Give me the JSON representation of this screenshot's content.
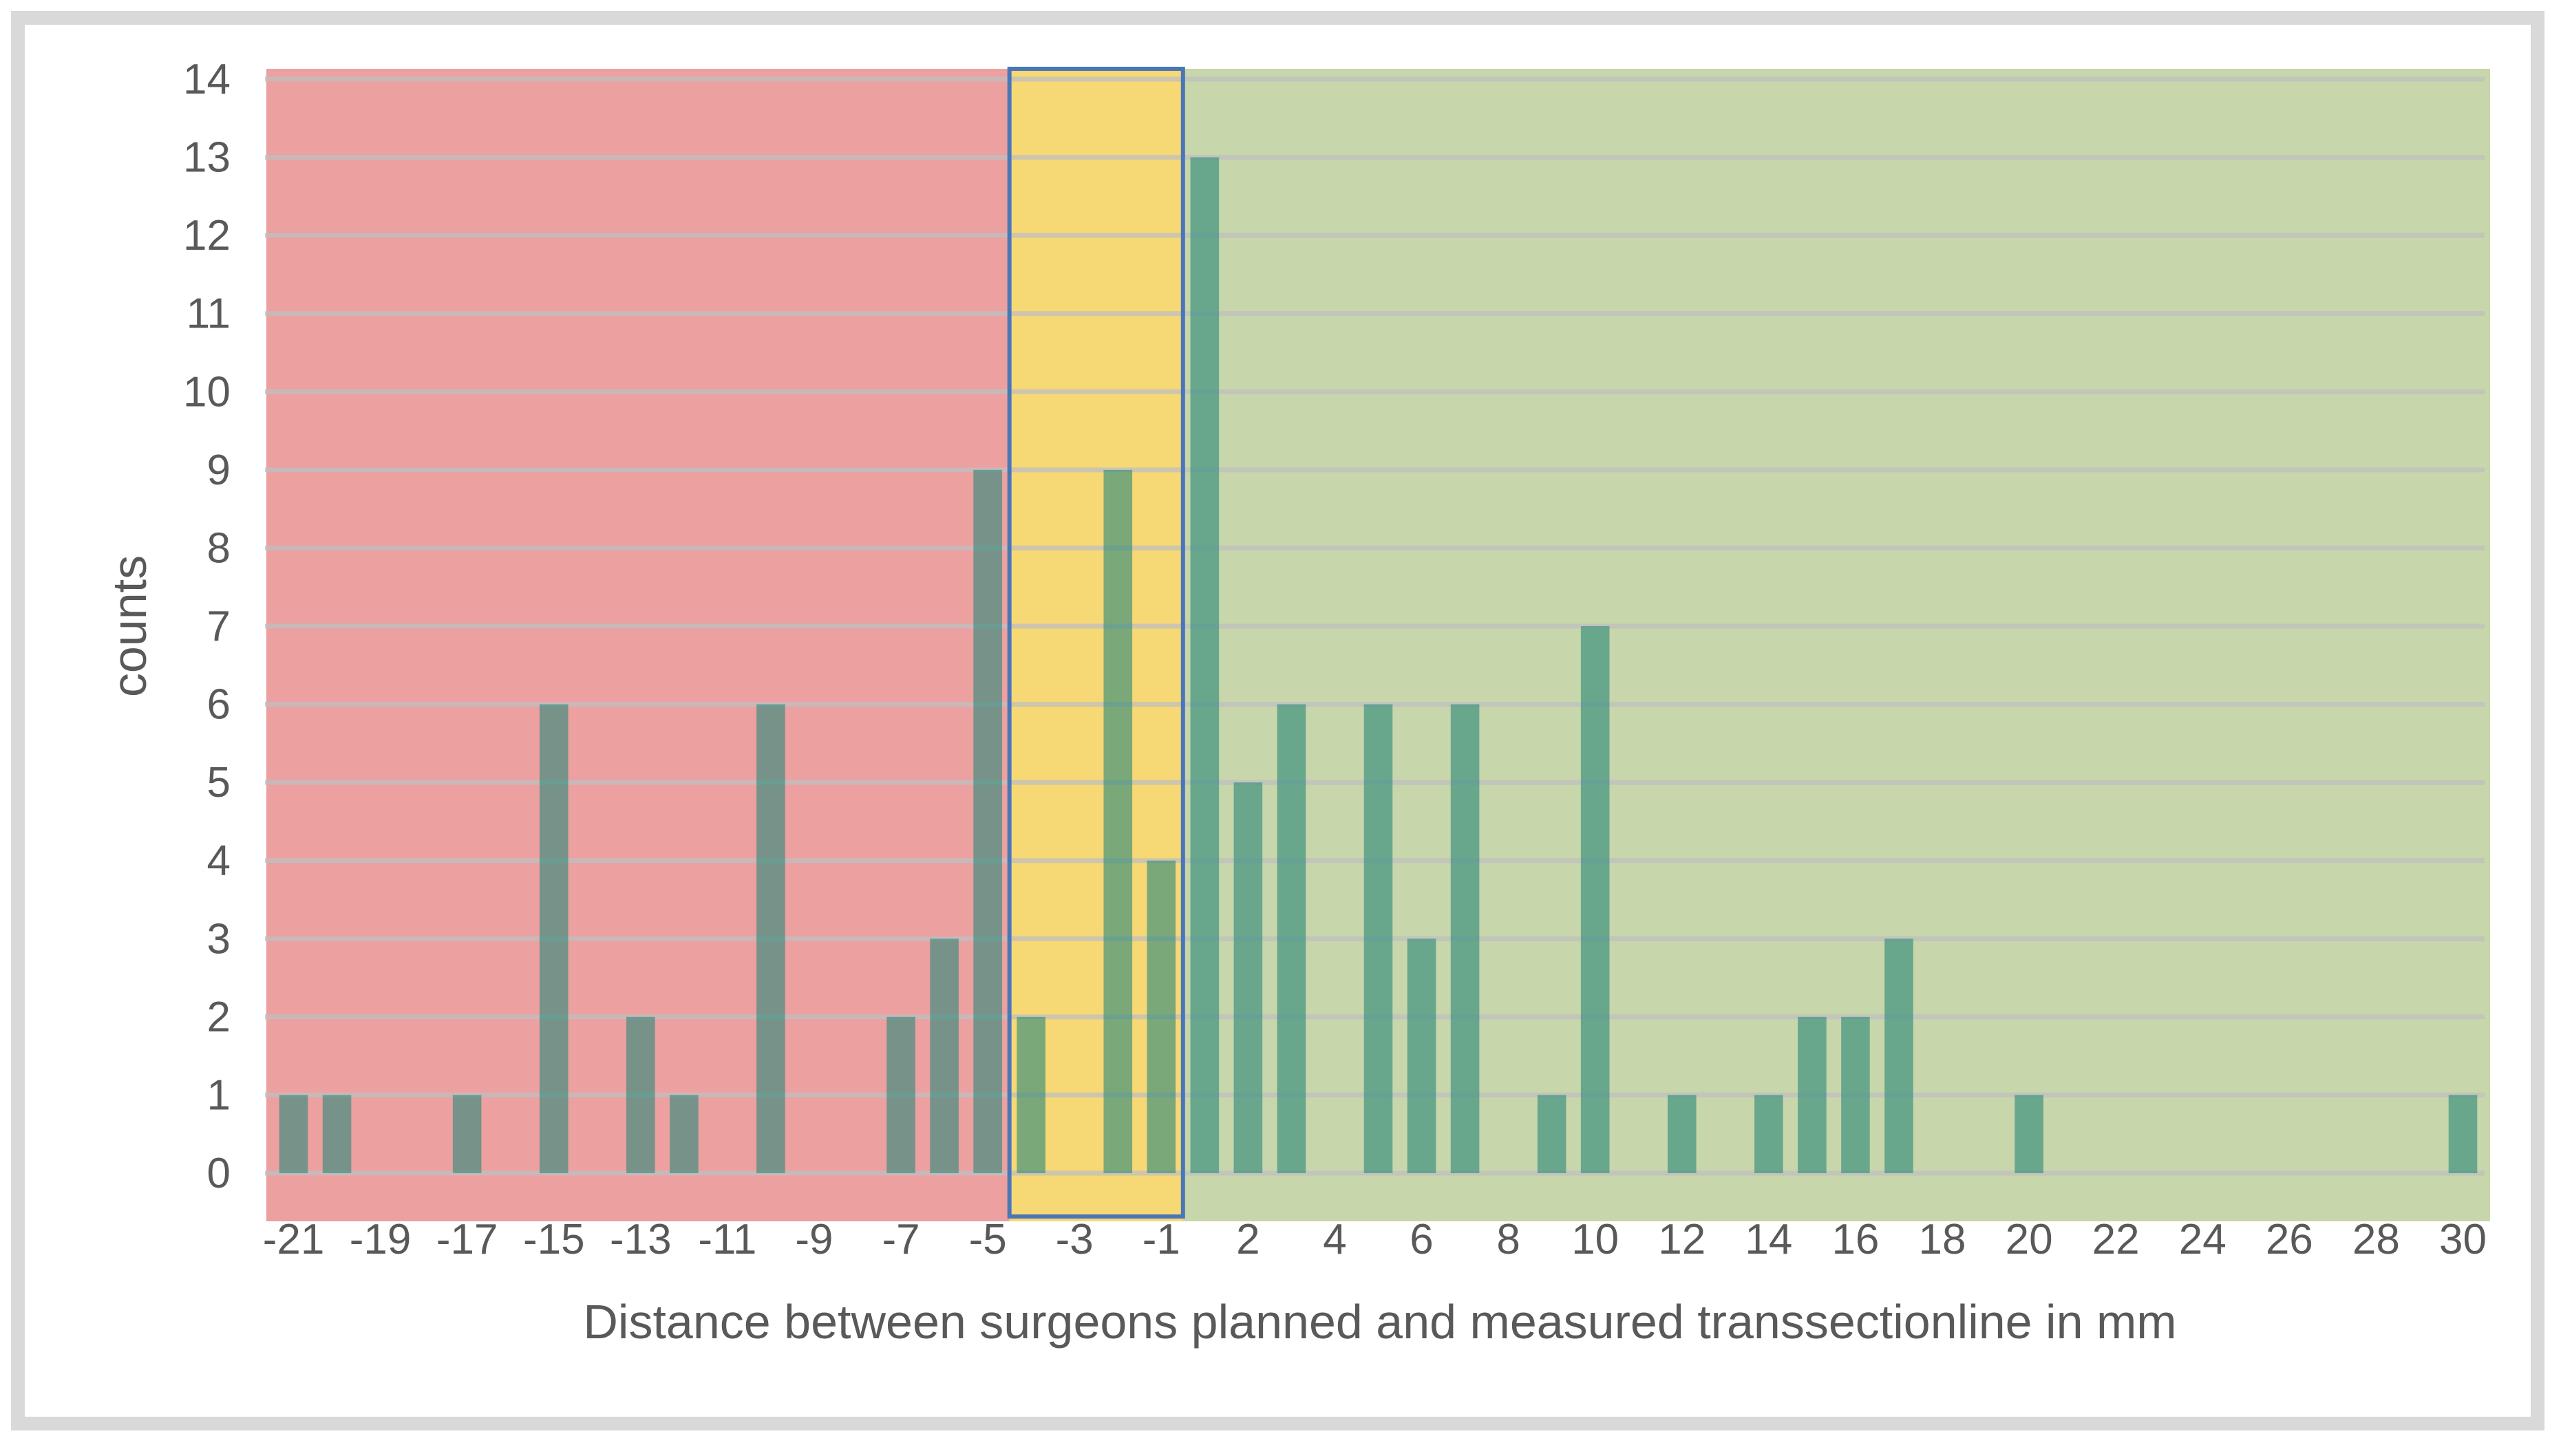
{
  "chart_data": {
    "type": "bar",
    "title": "",
    "xlabel": "Distance between surgeons planned and measured transsectionline in mm",
    "ylabel": "counts",
    "ylim": [
      0,
      14
    ],
    "yticks": [
      0,
      1,
      2,
      3,
      4,
      5,
      6,
      7,
      8,
      9,
      10,
      11,
      12,
      13,
      14
    ],
    "categories": [
      -21,
      -20,
      -19,
      -18,
      -17,
      -16,
      -15,
      -14,
      -13,
      -12,
      -11,
      -10,
      -9,
      -8,
      -7,
      -6,
      -5,
      -4,
      -3,
      -2,
      -1,
      1,
      2,
      3,
      4,
      5,
      6,
      7,
      8,
      9,
      10,
      11,
      12,
      13,
      14,
      15,
      16,
      17,
      18,
      19,
      20,
      21,
      22,
      23,
      24,
      25,
      26,
      27,
      28,
      29,
      30
    ],
    "tick_labels": [
      "-21",
      "-19",
      "-17",
      "-15",
      "-13",
      "-11",
      "-9",
      "-7",
      "-5",
      "-3",
      "-1",
      "2",
      "4",
      "6",
      "8",
      "10",
      "12",
      "14",
      "16",
      "18",
      "20",
      "22",
      "24",
      "26",
      "28",
      "30"
    ],
    "values": [
      1,
      1,
      0,
      0,
      1,
      0,
      6,
      0,
      2,
      1,
      0,
      6,
      0,
      0,
      2,
      3,
      9,
      2,
      0,
      9,
      4,
      13,
      5,
      6,
      0,
      6,
      3,
      6,
      0,
      1,
      7,
      0,
      1,
      0,
      1,
      2,
      2,
      3,
      0,
      0,
      1,
      0,
      0,
      0,
      0,
      0,
      0,
      0,
      0,
      0,
      1
    ],
    "grid": true,
    "regions": [
      {
        "name": "red-zone",
        "color": "#e06666",
        "from": -21,
        "to": -5
      },
      {
        "name": "yellow-zone",
        "color": "#f0c020",
        "from": -4,
        "to": -1
      },
      {
        "name": "green-zone",
        "color": "#a9c07e",
        "from": 1,
        "to": 30
      }
    ],
    "bar_color": "#2f8a7a",
    "grid_color": "#bfbfbf"
  }
}
